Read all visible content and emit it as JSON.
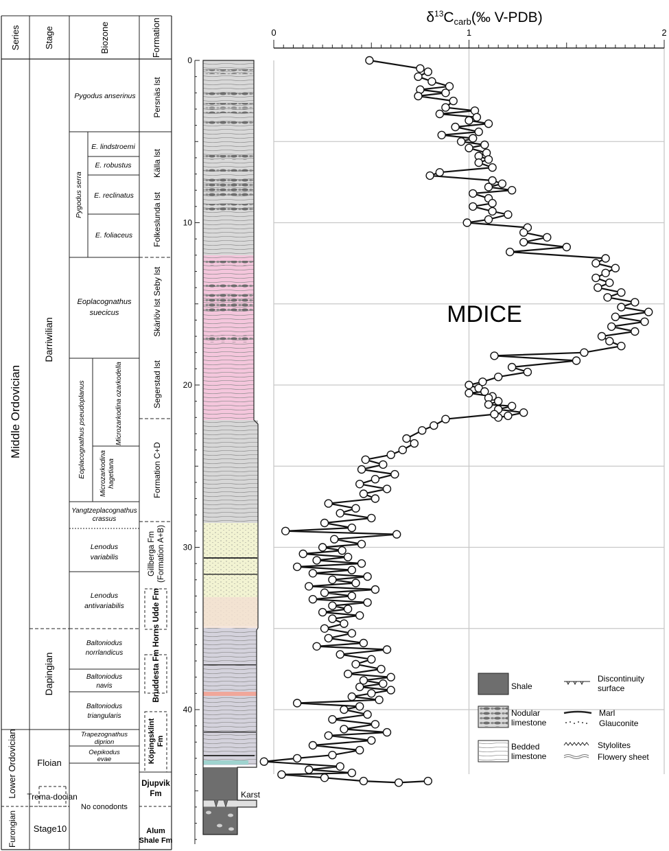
{
  "header": {
    "series": "Series",
    "stage": "Stage",
    "biozone": "Biozone",
    "formation": "Formation"
  },
  "series_units": [
    {
      "label": "Middle Ordovician",
      "top": 0,
      "bottom": 42.2
    },
    {
      "label": "Lower Ordovician",
      "top": 42.2,
      "bottom": 46.0
    },
    {
      "label": "Furongian",
      "top": 46.0,
      "bottom": 48.2
    }
  ],
  "stage_units": [
    {
      "label": "Darriwilian",
      "top": 0,
      "bottom": 35.2
    },
    {
      "label": "Dapingian",
      "top": 35.2,
      "bottom": 42.2
    },
    {
      "label": "Floian",
      "top": 42.2,
      "bottom": 45.5
    },
    {
      "label": "Trema-docian",
      "top": 45.5,
      "bottom": 46.5
    },
    {
      "label": "Stage10",
      "top": 46.5,
      "bottom": 48.2
    }
  ],
  "biozones": [
    {
      "label": "Pygodus anserinus",
      "top": 0,
      "bottom": 4.5
    },
    {
      "label": "Pygodus serra",
      "top": 4.5,
      "bottom": 12.0
    },
    {
      "label": "E. lindstroemi",
      "top": 4.5,
      "bottom": 6.5
    },
    {
      "label": "E. robustus",
      "top": 6.5,
      "bottom": 7.3
    },
    {
      "label": "E. reclinatus",
      "top": 7.3,
      "bottom": 9.3
    },
    {
      "label": "E. foliaceus",
      "top": 9.3,
      "bottom": 12.0
    },
    {
      "label": "Eoplacognathus suecicus",
      "top": 12.0,
      "bottom": 18.5
    },
    {
      "label": "Eoplacognathus pseudoplanus",
      "top": 18.5,
      "bottom": 27.2
    },
    {
      "label": "Microzarkodina ozarkodella",
      "top": 18.5,
      "bottom": 24.0
    },
    {
      "label": "Microzarkodina hagetiana",
      "top": 24.0,
      "bottom": 27.2
    },
    {
      "label": "Yangtzeplacognathus crassus",
      "top": 27.2,
      "bottom": 28.8
    },
    {
      "label": "Lenodus variabilis",
      "top": 28.8,
      "bottom": 31.5
    },
    {
      "label": "Lenodus antivariabilis",
      "top": 31.5,
      "bottom": 35.2
    },
    {
      "label": "Baltoniodus norrlandicus",
      "top": 35.2,
      "bottom": 37.8
    },
    {
      "label": "Baltoniodus navis",
      "top": 37.8,
      "bottom": 39.2
    },
    {
      "label": "Baltoniodus triangularis",
      "top": 39.2,
      "bottom": 42.2
    },
    {
      "label": "Trapezognathus diprion",
      "top": 42.2,
      "bottom": 43.3
    },
    {
      "label": "Oepikodus evae",
      "top": 43.3,
      "bottom": 44.2
    },
    {
      "label": "No conodonts",
      "top": 44.2,
      "bottom": 48.2
    }
  ],
  "formations": [
    {
      "label": "Persnäs lst",
      "top": 0,
      "bottom": 4.5
    },
    {
      "label": "Källa lst",
      "top": 4.5,
      "bottom": 7.5
    },
    {
      "label": "Folkeslunda lst",
      "top": 7.5,
      "bottom": 12.0
    },
    {
      "label": "Seby lst",
      "top": 12.0,
      "bottom": 14.0
    },
    {
      "label": "Skärlöv lst",
      "top": 14.0,
      "bottom": 17.5
    },
    {
      "label": "Segerstad lst",
      "top": 17.5,
      "bottom": 22.0
    },
    {
      "label": "Formation C+D",
      "top": 22.0,
      "bottom": 28.5
    },
    {
      "label": "Gillberga Fm (Formation A+B)",
      "top": 28.5,
      "bottom": 32.0
    },
    {
      "label": "Horns Udde Fm",
      "top": 32.0,
      "bottom": 36.0
    },
    {
      "label": "Bruddesta Fm",
      "top": 36.0,
      "bottom": 40.0
    },
    {
      "label": "Köpingsklint Fm",
      "top": 40.0,
      "bottom": 44.0
    },
    {
      "label": "Djupvik Fm",
      "top": 44.0,
      "bottom": 46.0
    },
    {
      "label": "Alum Shale Fm",
      "top": 46.0,
      "bottom": 48.2
    }
  ],
  "depth_axis": {
    "ticks": [
      "0",
      "10",
      "20",
      "30",
      "40"
    ],
    "values": [
      0,
      10,
      20,
      30,
      40
    ],
    "range": [
      0,
      48
    ]
  },
  "karst_label": "Karst",
  "mdice_label": "MDICE",
  "legend": {
    "shale": "Shale",
    "nodular": "Nodular limestone",
    "bedded": "Bedded limestone",
    "discontinuity": "Discontinuity surface",
    "marl": "Marl",
    "glauconite": "Glauconite",
    "stylolites": "Stylolites",
    "flowery": "Flowery sheet"
  },
  "colors": {
    "limestone_grey": "#d9d9d9",
    "pink_interval": "#f4c6dc",
    "yellow_interval": "#f2f3d2",
    "shale": "#6e6e6e",
    "grid": "#c8c8c8"
  },
  "chart_data": {
    "type": "scatter",
    "title": "δ13Ccarb(‰ V-PDB)",
    "xlim": [
      0,
      2
    ],
    "xticks": [
      "0",
      "1",
      "2"
    ],
    "ylim": [
      0,
      45
    ],
    "y_reversed": true,
    "grid": true,
    "series": [
      {
        "points": [
          [
            0.49,
            0.0
          ],
          [
            0.75,
            0.5
          ],
          [
            0.79,
            0.7
          ],
          [
            0.74,
            1.0
          ],
          [
            0.81,
            1.3
          ],
          [
            0.9,
            1.6
          ],
          [
            0.75,
            1.8
          ],
          [
            0.88,
            2.0
          ],
          [
            0.74,
            2.2
          ],
          [
            0.92,
            2.5
          ],
          [
            0.88,
            2.9
          ],
          [
            1.03,
            3.1
          ],
          [
            0.85,
            3.3
          ],
          [
            1.04,
            3.5
          ],
          [
            1.0,
            3.7
          ],
          [
            1.1,
            3.9
          ],
          [
            0.93,
            4.1
          ],
          [
            1.05,
            4.4
          ],
          [
            0.86,
            4.6
          ],
          [
            1.02,
            4.8
          ],
          [
            0.96,
            5.0
          ],
          [
            1.08,
            5.2
          ],
          [
            1.0,
            5.4
          ],
          [
            1.09,
            5.7
          ],
          [
            1.05,
            5.9
          ],
          [
            1.1,
            6.1
          ],
          [
            1.05,
            6.3
          ],
          [
            1.12,
            6.6
          ],
          [
            0.85,
            6.9
          ],
          [
            0.8,
            7.1
          ],
          [
            1.12,
            7.4
          ],
          [
            1.17,
            7.6
          ],
          [
            1.1,
            7.8
          ],
          [
            1.22,
            8.0
          ],
          [
            1.02,
            8.2
          ],
          [
            1.1,
            8.5
          ],
          [
            1.12,
            8.8
          ],
          [
            1.02,
            9.0
          ],
          [
            1.12,
            9.3
          ],
          [
            1.2,
            9.5
          ],
          [
            1.1,
            9.8
          ],
          [
            0.99,
            10.0
          ],
          [
            1.3,
            10.3
          ],
          [
            1.28,
            10.6
          ],
          [
            1.4,
            10.9
          ],
          [
            1.28,
            11.2
          ],
          [
            1.5,
            11.5
          ],
          [
            1.21,
            11.8
          ],
          [
            1.7,
            12.2
          ],
          [
            1.65,
            12.5
          ],
          [
            1.75,
            12.8
          ],
          [
            1.7,
            13.1
          ],
          [
            1.65,
            13.4
          ],
          [
            1.72,
            13.7
          ],
          [
            1.66,
            14.0
          ],
          [
            1.78,
            14.3
          ],
          [
            1.71,
            14.6
          ],
          [
            1.85,
            14.9
          ],
          [
            1.78,
            15.2
          ],
          [
            1.92,
            15.5
          ],
          [
            1.75,
            15.8
          ],
          [
            1.9,
            16.1
          ],
          [
            1.73,
            16.4
          ],
          [
            1.85,
            16.7
          ],
          [
            1.68,
            17.0
          ],
          [
            1.72,
            17.3
          ],
          [
            1.78,
            17.6
          ],
          [
            1.59,
            18.0
          ],
          [
            1.13,
            18.2
          ],
          [
            1.55,
            18.5
          ],
          [
            1.22,
            18.9
          ],
          [
            1.3,
            19.2
          ],
          [
            1.15,
            19.5
          ],
          [
            1.07,
            19.8
          ],
          [
            1.0,
            20.0
          ],
          [
            1.05,
            20.2
          ],
          [
            1.08,
            20.4
          ],
          [
            1.0,
            20.5
          ],
          [
            1.12,
            20.7
          ],
          [
            1.1,
            20.8
          ],
          [
            1.15,
            21.0
          ],
          [
            1.1,
            21.2
          ],
          [
            1.22,
            21.3
          ],
          [
            1.15,
            21.5
          ],
          [
            1.28,
            21.7
          ],
          [
            1.2,
            21.9
          ],
          [
            1.15,
            22.0
          ],
          [
            1.13,
            21.8
          ],
          [
            0.88,
            22.1
          ],
          [
            0.82,
            22.5
          ],
          [
            0.76,
            22.8
          ],
          [
            0.68,
            23.3
          ],
          [
            0.72,
            23.6
          ],
          [
            0.66,
            24.0
          ],
          [
            0.6,
            24.3
          ],
          [
            0.47,
            24.6
          ],
          [
            0.56,
            24.9
          ],
          [
            0.45,
            25.2
          ],
          [
            0.62,
            25.5
          ],
          [
            0.52,
            25.8
          ],
          [
            0.44,
            26.1
          ],
          [
            0.58,
            26.4
          ],
          [
            0.46,
            26.7
          ],
          [
            0.52,
            27.0
          ],
          [
            0.28,
            27.3
          ],
          [
            0.42,
            27.6
          ],
          [
            0.34,
            27.9
          ],
          [
            0.5,
            28.2
          ],
          [
            0.26,
            28.5
          ],
          [
            0.4,
            28.8
          ],
          [
            0.06,
            29.0
          ],
          [
            0.63,
            29.2
          ],
          [
            0.31,
            29.5
          ],
          [
            0.45,
            29.8
          ],
          [
            0.25,
            30.0
          ],
          [
            0.35,
            30.2
          ],
          [
            0.15,
            30.4
          ],
          [
            0.38,
            30.6
          ],
          [
            0.22,
            30.8
          ],
          [
            0.45,
            31.0
          ],
          [
            0.12,
            31.2
          ],
          [
            0.4,
            31.4
          ],
          [
            0.2,
            31.6
          ],
          [
            0.48,
            31.8
          ],
          [
            0.3,
            32.0
          ],
          [
            0.42,
            32.2
          ],
          [
            0.18,
            32.4
          ],
          [
            0.52,
            32.6
          ],
          [
            0.26,
            32.8
          ],
          [
            0.4,
            33.0
          ],
          [
            0.2,
            33.2
          ],
          [
            0.48,
            33.4
          ],
          [
            0.3,
            33.6
          ],
          [
            0.38,
            33.8
          ],
          [
            0.25,
            34.0
          ],
          [
            0.44,
            34.2
          ],
          [
            0.3,
            34.4
          ],
          [
            0.36,
            34.7
          ],
          [
            0.26,
            35.0
          ],
          [
            0.4,
            35.3
          ],
          [
            0.28,
            35.6
          ],
          [
            0.46,
            35.9
          ],
          [
            0.22,
            36.1
          ],
          [
            0.58,
            36.3
          ],
          [
            0.34,
            36.6
          ],
          [
            0.5,
            36.9
          ],
          [
            0.42,
            37.2
          ],
          [
            0.55,
            37.5
          ],
          [
            0.38,
            37.8
          ],
          [
            0.6,
            38.0
          ],
          [
            0.46,
            38.2
          ],
          [
            0.56,
            38.4
          ],
          [
            0.44,
            38.6
          ],
          [
            0.6,
            38.8
          ],
          [
            0.5,
            39.0
          ],
          [
            0.4,
            39.2
          ],
          [
            0.54,
            39.4
          ],
          [
            0.12,
            39.6
          ],
          [
            0.44,
            39.8
          ],
          [
            0.36,
            40.0
          ],
          [
            0.48,
            40.3
          ],
          [
            0.3,
            40.6
          ],
          [
            0.52,
            40.9
          ],
          [
            0.36,
            41.2
          ],
          [
            0.58,
            41.4
          ],
          [
            0.28,
            41.6
          ],
          [
            0.5,
            41.9
          ],
          [
            0.2,
            42.2
          ],
          [
            0.44,
            42.5
          ],
          [
            0.3,
            42.8
          ],
          [
            0.12,
            43.0
          ],
          [
            -0.05,
            43.2
          ],
          [
            0.34,
            43.5
          ],
          [
            0.18,
            43.7
          ],
          [
            0.4,
            43.9
          ],
          [
            0.04,
            44.0
          ],
          [
            0.26,
            44.2
          ],
          [
            0.46,
            44.4
          ],
          [
            0.64,
            44.5
          ],
          [
            0.79,
            44.4
          ]
        ]
      }
    ]
  }
}
